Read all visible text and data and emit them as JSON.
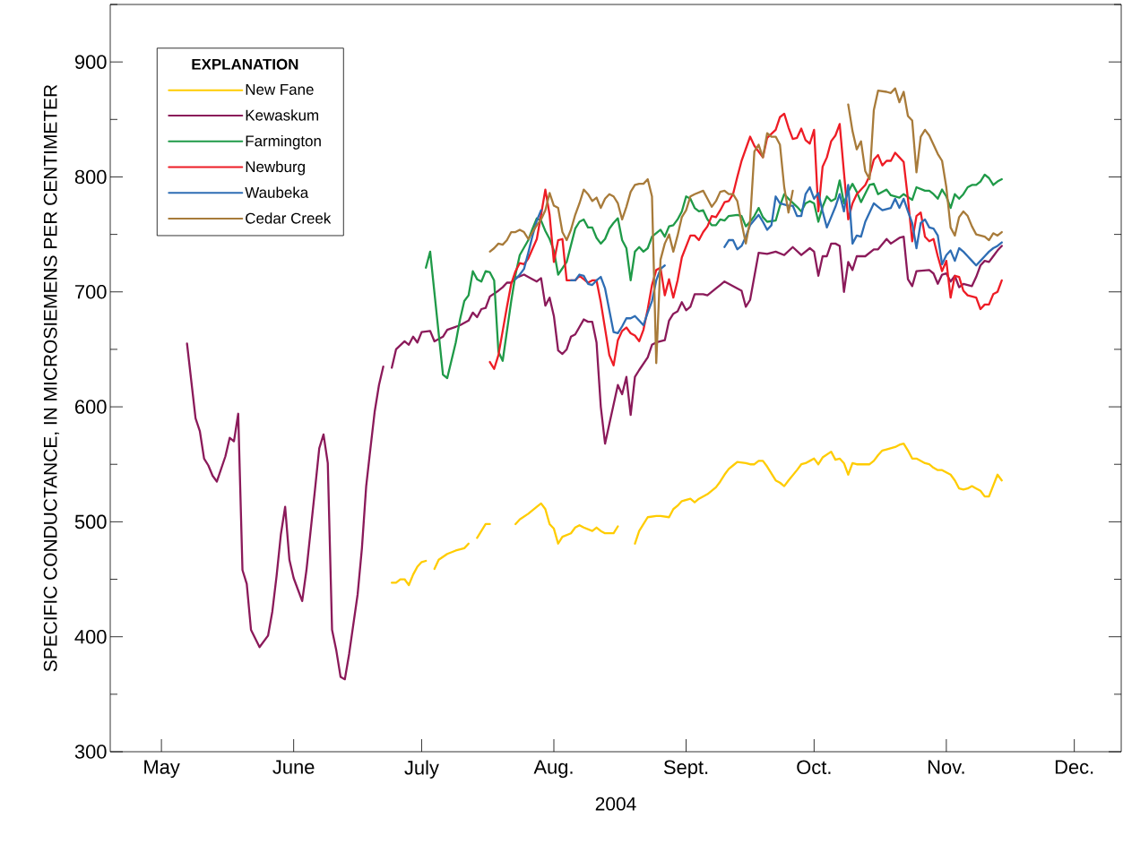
{
  "chart_data": {
    "type": "line",
    "xlabel": "2004",
    "ylabel": "SPECIFIC CONDUCTANCE, IN MICROSIEMENS PER CENTIMETER",
    "legend_title": "EXPLANATION",
    "legend": "top left",
    "xlim": [
      "2004-04-19",
      "2004-12-12"
    ],
    "xticks": [
      {
        "value": "2004-05-01",
        "label": "May"
      },
      {
        "value": "2004-06-01",
        "label": "June"
      },
      {
        "value": "2004-07-01",
        "label": "July"
      },
      {
        "value": "2004-08-01",
        "label": "Aug."
      },
      {
        "value": "2004-09-01",
        "label": "Sept."
      },
      {
        "value": "2004-10-01",
        "label": "Oct."
      },
      {
        "value": "2004-11-01",
        "label": "Nov."
      },
      {
        "value": "2004-12-01",
        "label": "Dec."
      }
    ],
    "ylim": [
      300,
      950
    ],
    "yticks": [
      300,
      {
        "value": 350,
        "label": null
      },
      400,
      {
        "value": 450,
        "label": null
      },
      500,
      {
        "value": 550,
        "label": null
      },
      600,
      {
        "value": 650,
        "label": null
      },
      700,
      {
        "value": 750,
        "label": null
      },
      800,
      {
        "value": 850,
        "label": null
      },
      900,
      {
        "value": 950,
        "label": null
      }
    ],
    "series": [
      {
        "name": "New Fane",
        "color": "#ffcc00",
        "x": [
          "2004-06-24",
          "2004-06-25",
          "2004-06-26",
          "2004-06-27",
          "2004-06-28",
          "2004-06-29",
          "2004-06-30",
          "2004-07-01",
          "2004-07-02",
          "2004-07-03",
          "2004-07-04",
          "2004-07-05",
          "2004-07-07",
          "2004-07-09",
          "2004-07-11",
          "2004-07-12",
          "2004-07-13",
          "2004-07-14",
          "2004-07-15",
          "2004-07-16",
          "2004-07-17",
          "2004-07-20",
          "2004-07-23",
          "2004-07-24",
          "2004-07-26",
          "2004-07-28",
          "2004-07-29",
          "2004-07-30",
          "2004-07-31",
          "2004-08-01",
          "2004-08-02",
          "2004-08-03",
          "2004-08-05",
          "2004-08-06",
          "2004-08-07",
          "2004-08-08",
          "2004-08-10",
          "2004-08-11",
          "2004-08-12",
          "2004-08-13",
          "2004-08-15",
          "2004-08-16",
          "2004-08-18",
          "2004-08-20",
          "2004-08-21",
          "2004-08-23",
          "2004-08-25",
          "2004-08-26",
          "2004-08-28",
          "2004-08-29",
          "2004-08-30",
          "2004-08-31",
          "2004-09-02",
          "2004-09-03",
          "2004-09-04",
          "2004-09-06",
          "2004-09-08",
          "2004-09-09",
          "2004-09-10",
          "2004-09-11",
          "2004-09-12",
          "2004-09-13",
          "2004-09-15",
          "2004-09-16",
          "2004-09-17",
          "2004-09-18",
          "2004-09-19",
          "2004-09-20",
          "2004-09-22",
          "2004-09-23",
          "2004-09-24",
          "2004-09-25",
          "2004-09-27",
          "2004-09-28",
          "2004-09-29",
          "2004-09-30",
          "2004-10-01",
          "2004-10-02",
          "2004-10-03",
          "2004-10-05",
          "2004-10-06",
          "2004-10-07",
          "2004-10-08",
          "2004-10-09",
          "2004-10-10",
          "2004-10-11",
          "2004-10-14",
          "2004-10-15",
          "2004-10-16",
          "2004-10-17",
          "2004-10-18",
          "2004-10-20",
          "2004-10-21",
          "2004-10-22",
          "2004-10-23",
          "2004-10-24",
          "2004-10-25",
          "2004-10-27",
          "2004-10-28",
          "2004-10-29",
          "2004-10-30",
          "2004-10-31",
          "2004-11-02",
          "2004-11-03",
          "2004-11-04",
          "2004-11-05",
          "2004-11-06",
          "2004-11-07",
          "2004-11-08",
          "2004-11-09",
          "2004-11-10",
          "2004-11-11",
          "2004-11-13",
          "2004-11-14"
        ],
        "values": [
          447,
          447,
          450,
          450,
          445,
          454,
          461,
          465,
          466,
          null,
          459,
          467,
          472,
          475,
          477,
          481,
          null,
          486,
          492,
          498,
          498,
          null,
          498,
          502,
          507,
          513,
          516,
          511,
          498,
          494,
          481,
          487,
          490,
          495,
          497,
          495,
          492,
          495,
          492,
          490,
          490,
          496,
          null,
          481,
          492,
          504,
          505,
          505,
          504,
          511,
          514,
          518,
          520,
          517,
          520,
          524,
          530,
          535,
          541,
          546,
          549,
          552,
          551,
          550,
          550,
          553,
          553,
          548,
          536,
          534,
          531,
          536,
          545,
          550,
          551,
          553,
          555,
          550,
          556,
          561,
          554,
          555,
          551,
          541,
          551,
          550,
          550,
          553,
          558,
          562,
          563,
          565,
          567,
          568,
          562,
          555,
          555,
          551,
          550,
          547,
          545,
          545,
          541,
          536,
          529,
          528,
          529,
          531,
          529,
          527,
          522,
          522,
          541,
          536
        ]
      },
      {
        "name": "Kewaskum",
        "color": "#8b1a5a",
        "x": [
          "2004-05-07",
          "2004-05-09",
          "2004-05-10",
          "2004-05-11",
          "2004-05-12",
          "2004-05-13",
          "2004-05-14",
          "2004-05-16",
          "2004-05-17",
          "2004-05-18",
          "2004-05-19",
          "2004-05-20",
          "2004-05-21",
          "2004-05-22",
          "2004-05-24",
          "2004-05-26",
          "2004-05-27",
          "2004-05-28",
          "2004-05-29",
          "2004-05-30",
          "2004-05-31",
          "2004-06-01",
          "2004-06-03",
          "2004-06-04",
          "2004-06-06",
          "2004-06-07",
          "2004-06-08",
          "2004-06-09",
          "2004-06-10",
          "2004-06-11",
          "2004-06-12",
          "2004-06-13",
          "2004-06-14",
          "2004-06-16",
          "2004-06-17",
          "2004-06-18",
          "2004-06-19",
          "2004-06-20",
          "2004-06-21",
          "2004-06-22",
          "2004-06-23",
          "2004-06-24",
          "2004-06-25",
          "2004-06-27",
          "2004-06-28",
          "2004-06-29",
          "2004-06-30",
          "2004-07-01",
          "2004-07-03",
          "2004-07-04",
          "2004-07-06",
          "2004-07-07",
          "2004-07-10",
          "2004-07-12",
          "2004-07-13",
          "2004-07-14",
          "2004-07-15",
          "2004-07-16",
          "2004-07-17",
          "2004-07-19",
          "2004-07-20",
          "2004-07-21",
          "2004-07-22",
          "2004-07-23",
          "2004-07-25",
          "2004-07-27",
          "2004-07-28",
          "2004-07-29",
          "2004-07-30",
          "2004-07-31",
          "2004-08-01",
          "2004-08-02",
          "2004-08-03",
          "2004-08-04",
          "2004-08-05",
          "2004-08-06",
          "2004-08-08",
          "2004-08-09",
          "2004-08-10",
          "2004-08-11",
          "2004-08-12",
          "2004-08-13",
          "2004-08-14",
          "2004-08-16",
          "2004-08-17",
          "2004-08-18",
          "2004-08-19",
          "2004-08-20",
          "2004-08-21",
          "2004-08-23",
          "2004-08-24",
          "2004-08-25",
          "2004-08-27",
          "2004-08-28",
          "2004-08-29",
          "2004-08-30",
          "2004-08-31",
          "2004-09-01",
          "2004-09-02",
          "2004-09-03",
          "2004-09-05",
          "2004-09-06",
          "2004-09-08",
          "2004-09-09",
          "2004-09-10",
          "2004-09-12",
          "2004-09-14",
          "2004-09-15",
          "2004-09-16",
          "2004-09-18",
          "2004-09-20",
          "2004-09-22",
          "2004-09-24",
          "2004-09-26",
          "2004-09-28",
          "2004-09-30",
          "2004-10-01",
          "2004-10-02",
          "2004-10-03",
          "2004-10-04",
          "2004-10-05",
          "2004-10-06",
          "2004-10-07",
          "2004-10-08",
          "2004-10-09",
          "2004-10-10",
          "2004-10-11",
          "2004-10-13",
          "2004-10-15",
          "2004-10-16",
          "2004-10-18",
          "2004-10-19",
          "2004-10-21",
          "2004-10-22",
          "2004-10-23",
          "2004-10-24",
          "2004-10-25",
          "2004-10-28",
          "2004-10-29",
          "2004-10-30",
          "2004-10-31",
          "2004-11-01",
          "2004-11-02",
          "2004-11-03",
          "2004-11-04",
          "2004-11-05",
          "2004-11-07",
          "2004-11-08",
          "2004-11-09",
          "2004-11-10",
          "2004-11-11",
          "2004-11-12",
          "2004-11-13",
          "2004-11-14"
        ],
        "values": [
          655,
          590,
          579,
          555,
          549,
          540,
          535,
          557,
          573,
          570,
          594,
          458,
          446,
          406,
          391,
          401,
          422,
          453,
          489,
          513,
          467,
          451,
          431,
          458,
          528,
          564,
          576,
          551,
          406,
          388,
          365,
          363,
          385,
          437,
          477,
          531,
          564,
          596,
          619,
          635,
          null,
          634,
          650,
          657,
          654,
          661,
          656,
          665,
          666,
          657,
          661,
          667,
          671,
          675,
          682,
          678,
          685,
          686,
          696,
          701,
          704,
          708,
          708,
          712,
          715,
          711,
          709,
          712,
          688,
          695,
          679,
          649,
          646,
          650,
          661,
          663,
          676,
          674,
          674,
          656,
          600,
          568,
          585,
          619,
          611,
          626,
          593,
          626,
          632,
          643,
          654,
          656,
          658,
          675,
          681,
          683,
          691,
          684,
          687,
          698,
          698,
          697,
          703,
          706,
          709,
          705,
          701,
          687,
          693,
          734,
          733,
          735,
          732,
          739,
          732,
          738,
          735,
          714,
          731,
          731,
          742,
          742,
          740,
          700,
          726,
          719,
          731,
          731,
          737,
          737,
          746,
          742,
          747,
          748,
          711,
          705,
          718,
          719,
          716,
          707,
          715,
          716,
          709,
          714,
          704,
          707,
          705,
          713,
          723,
          727,
          726,
          731,
          736,
          740
        ]
      },
      {
        "name": "Farmington",
        "color": "#1f9a48",
        "x": [
          "2004-07-02",
          "2004-07-03",
          "2004-07-06",
          "2004-07-07",
          "2004-07-09",
          "2004-07-10",
          "2004-07-11",
          "2004-07-12",
          "2004-07-13",
          "2004-07-14",
          "2004-07-15",
          "2004-07-16",
          "2004-07-17",
          "2004-07-18",
          "2004-07-19",
          "2004-07-20",
          "2004-07-21",
          "2004-07-22",
          "2004-07-23",
          "2004-07-24",
          "2004-07-26",
          "2004-07-27",
          "2004-07-28",
          "2004-07-29",
          "2004-07-30",
          "2004-07-31",
          "2004-08-01",
          "2004-08-02",
          "2004-08-04",
          "2004-08-06",
          "2004-08-07",
          "2004-08-08",
          "2004-08-09",
          "2004-08-10",
          "2004-08-11",
          "2004-08-12",
          "2004-08-13",
          "2004-08-14",
          "2004-08-15",
          "2004-08-16",
          "2004-08-17",
          "2004-08-18",
          "2004-08-19",
          "2004-08-20",
          "2004-08-21",
          "2004-08-22",
          "2004-08-23",
          "2004-08-24",
          "2004-08-26",
          "2004-08-27",
          "2004-08-28",
          "2004-08-29",
          "2004-08-30",
          "2004-08-31",
          "2004-09-01",
          "2004-09-02",
          "2004-09-03",
          "2004-09-04",
          "2004-09-05",
          "2004-09-06",
          "2004-09-07",
          "2004-09-08",
          "2004-09-09",
          "2004-09-10",
          "2004-09-11",
          "2004-09-13",
          "2004-09-14",
          "2004-09-15",
          "2004-09-16",
          "2004-09-17",
          "2004-09-18",
          "2004-09-19",
          "2004-09-20",
          "2004-09-22",
          "2004-09-23",
          "2004-09-24",
          "2004-09-25",
          "2004-09-27",
          "2004-09-28",
          "2004-09-29",
          "2004-09-30",
          "2004-10-01",
          "2004-10-02",
          "2004-10-03",
          "2004-10-04",
          "2004-10-05",
          "2004-10-06",
          "2004-10-07",
          "2004-10-08",
          "2004-10-09",
          "2004-10-10",
          "2004-10-11",
          "2004-10-12",
          "2004-10-14",
          "2004-10-15",
          "2004-10-16",
          "2004-10-18",
          "2004-10-19",
          "2004-10-21",
          "2004-10-22",
          "2004-10-24",
          "2004-10-25",
          "2004-10-27",
          "2004-10-28",
          "2004-10-29",
          "2004-10-30",
          "2004-10-31",
          "2004-11-01",
          "2004-11-02",
          "2004-11-03",
          "2004-11-04",
          "2004-11-05",
          "2004-11-06",
          "2004-11-07",
          "2004-11-08",
          "2004-11-09",
          "2004-11-10",
          "2004-11-11",
          "2004-11-12",
          "2004-11-13",
          "2004-11-14"
        ],
        "values": [
          721,
          735,
          628,
          625,
          656,
          676,
          692,
          697,
          718,
          711,
          709,
          718,
          717,
          710,
          648,
          640,
          666,
          692,
          715,
          732,
          745,
          755,
          764,
          762,
          753,
          746,
          736,
          715,
          726,
          755,
          761,
          763,
          756,
          756,
          747,
          742,
          746,
          755,
          760,
          764,
          745,
          738,
          710,
          735,
          739,
          735,
          738,
          748,
          754,
          748,
          757,
          758,
          763,
          770,
          783,
          781,
          773,
          770,
          771,
          763,
          758,
          758,
          763,
          762,
          766,
          767,
          766,
          757,
          761,
          766,
          773,
          765,
          761,
          762,
          775,
          785,
          781,
          774,
          770,
          777,
          779,
          777,
          761,
          774,
          783,
          779,
          781,
          797,
          777,
          787,
          794,
          787,
          778,
          793,
          794,
          785,
          789,
          784,
          782,
          785,
          780,
          791,
          788,
          788,
          785,
          781,
          789,
          783,
          773,
          785,
          781,
          785,
          791,
          793,
          793,
          796,
          802,
          799,
          793,
          796,
          798
        ]
      },
      {
        "name": "Newburg",
        "color": "#ee1c25",
        "x": [
          "2004-07-17",
          "2004-07-18",
          "2004-07-19",
          "2004-07-20",
          "2004-07-21",
          "2004-07-22",
          "2004-07-23",
          "2004-07-24",
          "2004-07-25",
          "2004-07-26",
          "2004-07-28",
          "2004-07-29",
          "2004-07-30",
          "2004-07-31",
          "2004-08-01",
          "2004-08-02",
          "2004-08-03",
          "2004-08-04",
          "2004-08-06",
          "2004-08-07",
          "2004-08-08",
          "2004-08-09",
          "2004-08-10",
          "2004-08-11",
          "2004-08-12",
          "2004-08-14",
          "2004-08-15",
          "2004-08-16",
          "2004-08-17",
          "2004-08-18",
          "2004-08-19",
          "2004-08-20",
          "2004-08-21",
          "2004-08-22",
          "2004-08-23",
          "2004-08-24",
          "2004-08-25",
          "2004-08-26",
          "2004-08-27",
          "2004-08-28",
          "2004-08-29",
          "2004-08-30",
          "2004-08-31",
          "2004-09-02",
          "2004-09-03",
          "2004-09-04",
          "2004-09-05",
          "2004-09-06",
          "2004-09-07",
          "2004-09-08",
          "2004-09-09",
          "2004-09-10",
          "2004-09-11",
          "2004-09-12",
          "2004-09-13",
          "2004-09-14",
          "2004-09-16",
          "2004-09-17",
          "2004-09-19",
          "2004-09-20",
          "2004-09-22",
          "2004-09-23",
          "2004-09-24",
          "2004-09-25",
          "2004-09-26",
          "2004-09-27",
          "2004-09-28",
          "2004-09-29",
          "2004-09-30",
          "2004-10-01",
          "2004-10-02",
          "2004-10-03",
          "2004-10-04",
          "2004-10-05",
          "2004-10-06",
          "2004-10-07",
          "2004-10-08",
          "2004-10-09",
          "2004-10-10",
          "2004-10-11",
          "2004-10-13",
          "2004-10-14",
          "2004-10-15",
          "2004-10-16",
          "2004-10-17",
          "2004-10-18",
          "2004-10-19",
          "2004-10-20",
          "2004-10-21",
          "2004-10-22",
          "2004-10-23",
          "2004-10-24",
          "2004-10-25",
          "2004-10-26",
          "2004-10-27",
          "2004-10-28",
          "2004-10-29",
          "2004-10-30",
          "2004-10-31",
          "2004-11-01",
          "2004-11-02",
          "2004-11-03",
          "2004-11-04",
          "2004-11-05",
          "2004-11-06",
          "2004-11-08",
          "2004-11-09",
          "2004-11-10",
          "2004-11-11",
          "2004-11-12",
          "2004-11-13",
          "2004-11-14"
        ],
        "values": [
          639,
          633,
          645,
          666,
          687,
          707,
          718,
          725,
          724,
          729,
          746,
          767,
          789,
          767,
          726,
          745,
          746,
          710,
          710,
          714,
          711,
          708,
          710,
          710,
          691,
          645,
          636,
          658,
          666,
          669,
          664,
          662,
          657,
          667,
          685,
          706,
          719,
          721,
          697,
          711,
          695,
          710,
          730,
          749,
          749,
          745,
          752,
          757,
          766,
          765,
          771,
          778,
          779,
          785,
          800,
          814,
          835,
          827,
          817,
          834,
          841,
          852,
          855,
          843,
          833,
          834,
          842,
          832,
          829,
          841,
          770,
          809,
          817,
          831,
          836,
          846,
          804,
          763,
          777,
          785,
          793,
          801,
          815,
          819,
          810,
          814,
          814,
          821,
          817,
          813,
          781,
          744,
          766,
          769,
          748,
          744,
          746,
          731,
          718,
          727,
          695,
          714,
          713,
          701,
          697,
          695,
          685,
          689,
          689,
          698,
          700,
          710
        ]
      },
      {
        "name": "Waubeka",
        "color": "#2e6db4",
        "x": [
          "2004-07-23",
          "2004-07-24",
          "2004-07-25",
          "2004-07-26",
          "2004-07-27",
          "2004-07-28",
          "2004-07-29",
          "2004-08-01",
          "2004-08-05",
          "2004-08-06",
          "2004-08-07",
          "2004-08-08",
          "2004-08-09",
          "2004-08-10",
          "2004-08-11",
          "2004-08-12",
          "2004-08-13",
          "2004-08-15",
          "2004-08-16",
          "2004-08-17",
          "2004-08-18",
          "2004-08-19",
          "2004-08-20",
          "2004-08-21",
          "2004-08-22",
          "2004-08-23",
          "2004-08-24",
          "2004-08-25",
          "2004-08-26",
          "2004-08-27",
          "2004-09-01",
          "2004-09-10",
          "2004-09-11",
          "2004-09-12",
          "2004-09-13",
          "2004-09-14",
          "2004-09-15",
          "2004-09-16",
          "2004-09-18",
          "2004-09-19",
          "2004-09-20",
          "2004-09-21",
          "2004-09-22",
          "2004-09-23",
          "2004-09-25",
          "2004-09-26",
          "2004-09-27",
          "2004-09-28",
          "2004-09-29",
          "2004-09-30",
          "2004-10-01",
          "2004-10-02",
          "2004-10-03",
          "2004-10-04",
          "2004-10-05",
          "2004-10-06",
          "2004-10-07",
          "2004-10-08",
          "2004-10-09",
          "2004-10-10",
          "2004-10-11",
          "2004-10-12",
          "2004-10-13",
          "2004-10-15",
          "2004-10-16",
          "2004-10-17",
          "2004-10-19",
          "2004-10-20",
          "2004-10-21",
          "2004-10-22",
          "2004-10-23",
          "2004-10-24",
          "2004-10-25",
          "2004-10-26",
          "2004-10-27",
          "2004-10-28",
          "2004-10-29",
          "2004-10-30",
          "2004-10-31",
          "2004-11-01",
          "2004-11-02",
          "2004-11-03",
          "2004-11-04",
          "2004-11-05",
          "2004-11-06",
          "2004-11-07",
          "2004-11-08",
          "2004-11-09",
          "2004-11-10",
          "2004-11-11",
          "2004-11-12",
          "2004-11-13",
          "2004-11-14"
        ],
        "values": [
          711,
          715,
          720,
          734,
          749,
          762,
          771,
          null,
          710,
          710,
          715,
          714,
          707,
          706,
          710,
          713,
          703,
          665,
          664,
          670,
          677,
          677,
          679,
          675,
          671,
          682,
          692,
          710,
          720,
          723,
          null,
          739,
          745,
          745,
          737,
          740,
          748,
          758,
          767,
          761,
          754,
          758,
          783,
          777,
          775,
          775,
          766,
          766,
          785,
          791,
          781,
          786,
          770,
          756,
          765,
          774,
          785,
          770,
          793,
          742,
          749,
          748,
          761,
          777,
          774,
          771,
          773,
          781,
          773,
          781,
          770,
          760,
          738,
          760,
          763,
          756,
          755,
          749,
          724,
          732,
          736,
          727,
          738,
          735,
          731,
          727,
          723,
          727,
          731,
          735,
          738,
          740,
          743
        ]
      },
      {
        "name": "Cedar Creek",
        "color": "#a87b3a",
        "x": [
          "2004-07-17",
          "2004-07-18",
          "2004-07-19",
          "2004-07-20",
          "2004-07-21",
          "2004-07-22",
          "2004-07-23",
          "2004-07-24",
          "2004-07-25",
          "2004-07-26",
          "2004-07-27",
          "2004-07-28",
          "2004-07-29",
          "2004-07-30",
          "2004-07-31",
          "2004-08-01",
          "2004-08-02",
          "2004-08-03",
          "2004-08-04",
          "2004-08-05",
          "2004-08-06",
          "2004-08-07",
          "2004-08-08",
          "2004-08-09",
          "2004-08-10",
          "2004-08-11",
          "2004-08-12",
          "2004-08-13",
          "2004-08-14",
          "2004-08-15",
          "2004-08-16",
          "2004-08-17",
          "2004-08-18",
          "2004-08-19",
          "2004-08-20",
          "2004-08-21",
          "2004-08-22",
          "2004-08-23",
          "2004-08-24",
          "2004-08-25",
          "2004-08-26",
          "2004-08-27",
          "2004-08-28",
          "2004-08-29",
          "2004-08-30",
          "2004-08-31",
          "2004-09-01",
          "2004-09-02",
          "2004-09-03",
          "2004-09-05",
          "2004-09-06",
          "2004-09-07",
          "2004-09-08",
          "2004-09-09",
          "2004-09-10",
          "2004-09-11",
          "2004-09-12",
          "2004-09-13",
          "2004-09-14",
          "2004-09-15",
          "2004-09-16",
          "2004-09-17",
          "2004-09-18",
          "2004-09-19",
          "2004-09-20",
          "2004-09-21",
          "2004-09-22",
          "2004-09-23",
          "2004-09-24",
          "2004-09-25",
          "2004-09-26",
          "2004-10-01",
          "2004-10-09",
          "2004-10-10",
          "2004-10-11",
          "2004-10-12",
          "2004-10-13",
          "2004-10-14",
          "2004-10-15",
          "2004-10-16",
          "2004-10-18",
          "2004-10-19",
          "2004-10-20",
          "2004-10-21",
          "2004-10-22",
          "2004-10-23",
          "2004-10-24",
          "2004-10-25",
          "2004-10-26",
          "2004-10-27",
          "2004-10-28",
          "2004-10-29",
          "2004-10-30",
          "2004-10-31",
          "2004-11-01",
          "2004-11-02",
          "2004-11-03",
          "2004-11-04",
          "2004-11-05",
          "2004-11-06",
          "2004-11-07",
          "2004-11-08",
          "2004-11-10",
          "2004-11-11",
          "2004-11-12",
          "2004-11-13",
          "2004-11-14"
        ],
        "values": [
          735,
          738,
          742,
          741,
          745,
          752,
          752,
          754,
          752,
          746,
          752,
          758,
          763,
          771,
          786,
          775,
          773,
          752,
          745,
          754,
          767,
          777,
          789,
          785,
          779,
          782,
          773,
          781,
          785,
          783,
          777,
          763,
          774,
          787,
          793,
          794,
          794,
          798,
          783,
          638,
          728,
          742,
          750,
          735,
          749,
          765,
          771,
          783,
          785,
          788,
          781,
          774,
          779,
          787,
          788,
          785,
          785,
          779,
          760,
          742,
          762,
          822,
          828,
          817,
          838,
          835,
          835,
          828,
          791,
          769,
          788,
          null,
          863,
          840,
          824,
          831,
          805,
          798,
          858,
          875,
          874,
          873,
          877,
          865,
          874,
          853,
          849,
          804,
          835,
          841,
          836,
          828,
          820,
          814,
          791,
          756,
          749,
          765,
          770,
          766,
          757,
          750,
          748,
          745,
          751,
          749,
          752
        ]
      }
    ]
  }
}
